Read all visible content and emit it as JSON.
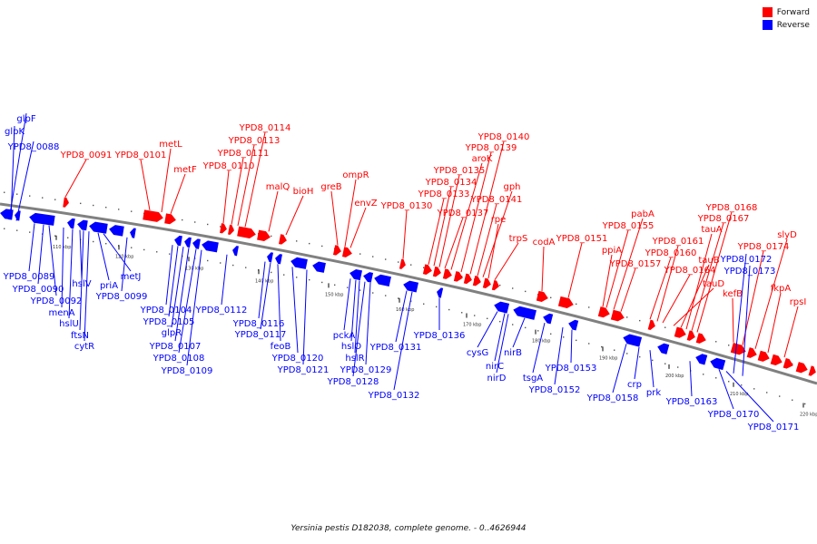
{
  "legend": [
    {
      "label": "Forward",
      "color": "#ff0000"
    },
    {
      "label": "Reverse",
      "color": "#0000ff"
    }
  ],
  "caption": "Yersinia pestis D182038, complete genome. - 0..4626944",
  "colors": {
    "forward": "#ff0000",
    "reverse": "#0000ff",
    "backbone": "#808080"
  },
  "ticks": [
    "110 kbp",
    "120 kbp",
    "130 kbp",
    "140 kbp",
    "150 kbp",
    "160 kbp",
    "170 kbp",
    "180 kbp",
    "190 kbp",
    "200 kbp",
    "210 kbp",
    "220 kbp"
  ],
  "forward_labels": [
    "YPD8_0091",
    "YPD8_0101",
    "metL",
    "metF",
    "YPD8_0110",
    "YPD8_0111",
    "YPD8_0113",
    "YPD8_0114",
    "malQ",
    "bioH",
    "greB",
    "ompR",
    "envZ",
    "YPD8_0130",
    "YPD8_0133",
    "YPD8_0134",
    "YPD8_0135",
    "YPD8_0137",
    "aroK",
    "YPD8_0139",
    "YPD8_0140",
    "YPD8_0141",
    "gph",
    "rpe",
    "trpS",
    "codA",
    "YPD8_0151",
    "ppiA",
    "YPD8_0155",
    "pabA",
    "YPD8_0157",
    "YPD8_0160",
    "YPD8_0161",
    "YPD8_0164",
    "tauD",
    "tauB",
    "tauA",
    "YPD8_0167",
    "YPD8_0168",
    "kefB",
    "YPD8_0174",
    "slyD",
    "fkpA",
    "rpsI"
  ],
  "reverse_labels": [
    "glpF",
    "glpK",
    "YPD8_0088",
    "YPD8_0089",
    "YPD8_0090",
    "YPD8_0092",
    "menA",
    "hslU",
    "hslV",
    "ftsN",
    "cytR",
    "priA",
    "metJ",
    "YPD8_0099",
    "YPD8_0104",
    "YPD8_0105",
    "glpR",
    "YPD8_0107",
    "YPD8_0108",
    "YPD8_0109",
    "YPD8_0112",
    "YPD8_0116",
    "YPD8_0117",
    "feoB",
    "YPD8_0120",
    "YPD8_0121",
    "pckA",
    "hslO",
    "hslR",
    "YPD8_0128",
    "YPD8_0129",
    "YPD8_0131",
    "YPD8_0132",
    "YPD8_0136",
    "cysG",
    "nirC",
    "nirD",
    "nirB",
    "tsgA",
    "YPD8_0152",
    "YPD8_0153",
    "YPD8_0158",
    "crp",
    "prk",
    "YPD8_0163",
    "YPD8_0170",
    "YPD8_0171",
    "YPD8_0172",
    "YPD8_0173"
  ]
}
